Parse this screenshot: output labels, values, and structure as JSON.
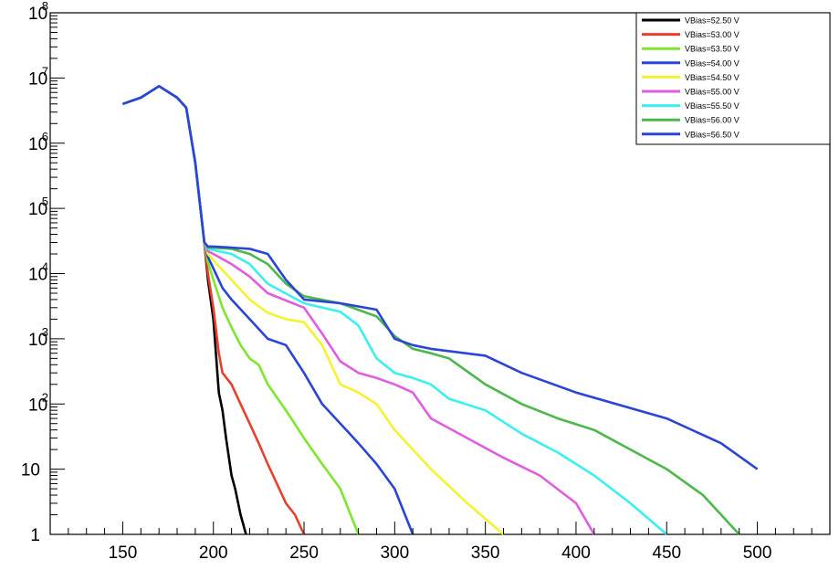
{
  "chart_data": {
    "type": "line",
    "title": "",
    "xlabel": "",
    "ylabel": "",
    "xlim": [
      110,
      540
    ],
    "ylim": [
      1,
      100000000
    ],
    "yscale": "log",
    "grid": false,
    "legend_position": "top-right",
    "x_ticks": [
      {
        "value": 150,
        "label": "150"
      },
      {
        "value": 200,
        "label": "200"
      },
      {
        "value": 250,
        "label": "250"
      },
      {
        "value": 300,
        "label": "300"
      },
      {
        "value": 350,
        "label": "350"
      },
      {
        "value": 400,
        "label": "400"
      },
      {
        "value": 450,
        "label": "450"
      },
      {
        "value": 500,
        "label": "500"
      }
    ],
    "y_ticks": [
      {
        "value": 1,
        "label": "1"
      },
      {
        "value": 10,
        "label": "10"
      },
      {
        "value": 100,
        "label": "10",
        "exp": "2"
      },
      {
        "value": 1000,
        "label": "10",
        "exp": "3"
      },
      {
        "value": 10000,
        "label": "10",
        "exp": "4"
      },
      {
        "value": 100000,
        "label": "10",
        "exp": "5"
      },
      {
        "value": 1000000,
        "label": "10",
        "exp": "6"
      },
      {
        "value": 10000000,
        "label": "10",
        "exp": "7"
      },
      {
        "value": 100000000,
        "label": "10",
        "exp": "8"
      }
    ],
    "series": [
      {
        "name": "VBias=52.50 V",
        "color": "#000000",
        "x": [
          150,
          160,
          170,
          180,
          185,
          190,
          195,
          197,
          200,
          203,
          205,
          207,
          210,
          212,
          215,
          218
        ],
        "y": [
          4000000,
          5000000,
          7500000,
          5000000,
          3500000,
          500000,
          30000,
          8000,
          2000,
          150,
          80,
          30,
          8,
          5,
          2,
          1
        ]
      },
      {
        "name": "VBias=53.00 V",
        "color": "#e8402c",
        "x": [
          150,
          160,
          170,
          180,
          185,
          190,
          195,
          197,
          200,
          203,
          205,
          210,
          215,
          220,
          225,
          230,
          235,
          240,
          245,
          250
        ],
        "y": [
          4000000,
          5000000,
          7500000,
          5000000,
          3500000,
          500000,
          30000,
          10000,
          3000,
          600,
          300,
          200,
          100,
          50,
          25,
          12,
          6,
          3,
          2,
          1
        ]
      },
      {
        "name": "VBias=53.50 V",
        "color": "#7fe62e",
        "x": [
          150,
          160,
          170,
          180,
          185,
          190,
          195,
          197,
          200,
          205,
          210,
          215,
          220,
          225,
          230,
          240,
          250,
          260,
          270,
          280
        ],
        "y": [
          4000000,
          5000000,
          7500000,
          5000000,
          3500000,
          500000,
          30000,
          15000,
          8000,
          3000,
          1500,
          800,
          500,
          400,
          200,
          80,
          30,
          12,
          5,
          1
        ]
      },
      {
        "name": "VBias=54.00 V",
        "color": "#2a45d6",
        "x": [
          150,
          160,
          170,
          180,
          185,
          190,
          195,
          197,
          200,
          205,
          210,
          220,
          230,
          240,
          250,
          260,
          270,
          280,
          290,
          300,
          310
        ],
        "y": [
          4000000,
          5000000,
          7500000,
          5000000,
          3500000,
          500000,
          30000,
          18000,
          12000,
          6000,
          4000,
          2000,
          1000,
          800,
          300,
          100,
          50,
          25,
          12,
          5,
          1
        ]
      },
      {
        "name": "VBias=54.50 V",
        "color": "#f5f230",
        "x": [
          150,
          160,
          170,
          180,
          185,
          190,
          195,
          197,
          200,
          210,
          220,
          230,
          240,
          250,
          260,
          270,
          280,
          290,
          300,
          320,
          340,
          360
        ],
        "y": [
          4000000,
          5000000,
          7500000,
          5000000,
          3500000,
          500000,
          30000,
          20000,
          16000,
          8000,
          4000,
          2500,
          2000,
          1800,
          800,
          200,
          150,
          100,
          40,
          10,
          3,
          1
        ]
      },
      {
        "name": "VBias=55.00 V",
        "color": "#e05ce0",
        "x": [
          150,
          160,
          170,
          180,
          185,
          190,
          195,
          197,
          200,
          210,
          220,
          230,
          250,
          260,
          270,
          280,
          290,
          300,
          310,
          320,
          340,
          360,
          380,
          400,
          410
        ],
        "y": [
          4000000,
          5000000,
          7500000,
          5000000,
          3500000,
          500000,
          30000,
          22000,
          20000,
          14000,
          9000,
          5000,
          3000,
          1200,
          450,
          300,
          250,
          200,
          150,
          60,
          30,
          15,
          8,
          3,
          1
        ]
      },
      {
        "name": "VBias=55.50 V",
        "color": "#3cefef",
        "x": [
          150,
          160,
          170,
          180,
          185,
          190,
          195,
          197,
          200,
          210,
          220,
          230,
          250,
          270,
          280,
          290,
          300,
          310,
          320,
          330,
          350,
          370,
          390,
          410,
          430,
          450
        ],
        "y": [
          4000000,
          5000000,
          7500000,
          5000000,
          3500000,
          500000,
          30000,
          24000,
          23000,
          20000,
          14000,
          7000,
          3500,
          2600,
          1600,
          500,
          300,
          250,
          200,
          120,
          80,
          35,
          18,
          8,
          3,
          1
        ]
      },
      {
        "name": "VBias=56.00 V",
        "color": "#4cb84c",
        "x": [
          150,
          160,
          170,
          180,
          185,
          190,
          195,
          197,
          200,
          210,
          220,
          230,
          240,
          250,
          270,
          290,
          300,
          310,
          320,
          330,
          350,
          370,
          390,
          410,
          430,
          450,
          470,
          490
        ],
        "y": [
          4000000,
          5000000,
          7500000,
          5000000,
          3500000,
          500000,
          30000,
          25000,
          25000,
          24000,
          20000,
          14000,
          7000,
          4500,
          3500,
          2200,
          1100,
          700,
          600,
          500,
          200,
          100,
          60,
          40,
          20,
          10,
          4,
          1
        ]
      },
      {
        "name": "VBias=56.50 V",
        "color": "#2a45d6",
        "x": [
          150,
          160,
          170,
          180,
          185,
          190,
          195,
          197,
          200,
          210,
          220,
          230,
          240,
          250,
          270,
          290,
          300,
          310,
          320,
          350,
          370,
          400,
          450,
          480,
          500
        ],
        "y": [
          4000000,
          5000000,
          7500000,
          5000000,
          3500000,
          500000,
          30000,
          26000,
          26000,
          25000,
          24000,
          20000,
          8000,
          4000,
          3500,
          2800,
          1000,
          800,
          700,
          550,
          300,
          150,
          60,
          25,
          10
        ]
      }
    ]
  }
}
